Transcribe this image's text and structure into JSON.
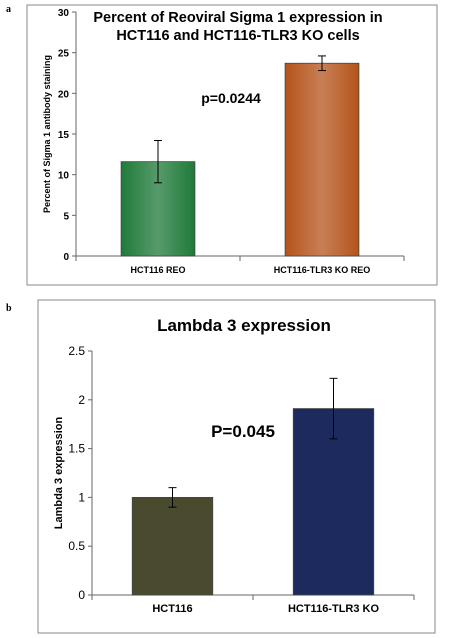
{
  "panels": [
    {
      "label": "a"
    },
    {
      "label": "b"
    }
  ],
  "chart_data": [
    {
      "type": "bar",
      "title_lines": [
        "Percent of  Reoviral  Sigma 1  expression  in",
        "HCT116 and HCT116-TLR3 KO cells"
      ],
      "ylabel": "Percent of Sigma 1 antibody staining",
      "xlabel": "",
      "ylim": [
        0,
        30
      ],
      "yticks": [
        "0",
        "5",
        "10",
        "15",
        "20",
        "25",
        "30"
      ],
      "categories": [
        "HCT116 REO",
        "HCT116-TLR3 KO REO"
      ],
      "values": [
        11.6,
        23.7
      ],
      "errors": [
        2.6,
        0.9
      ],
      "colors": [
        "#1f7a3a",
        "#b5541c"
      ],
      "annotation": "p=0.0244",
      "grid": false
    },
    {
      "type": "bar",
      "title_lines": [
        "Lambda 3 expression"
      ],
      "ylabel": "Lambda 3  expression",
      "xlabel": "",
      "ylim": [
        0,
        2.5
      ],
      "yticks": [
        "0",
        "0.5",
        "1",
        "1.5",
        "2",
        "2.5"
      ],
      "categories": [
        "HCT116",
        "HCT116-TLR3 KO"
      ],
      "values": [
        1.0,
        1.91
      ],
      "errors": [
        0.1,
        0.31
      ],
      "colors": [
        "#4a4a2e",
        "#1c2a5e"
      ],
      "annotation": "P=0.045",
      "grid": false
    }
  ]
}
